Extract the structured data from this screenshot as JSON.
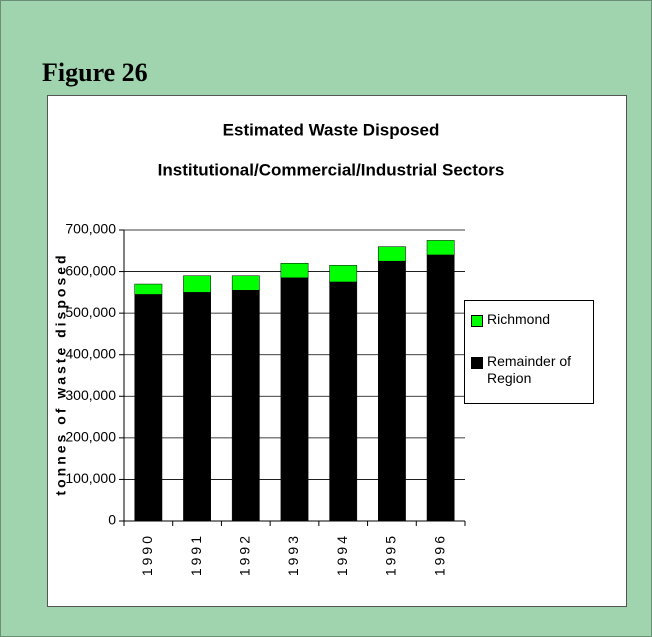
{
  "figure_label": "Figure 26",
  "chart_data": {
    "type": "stacked_bar",
    "title": [
      "Estimated Waste Disposed",
      "Institutional/Commercial/Industrial Sectors"
    ],
    "ylabel": "tonnes of waste disposed",
    "categories": [
      "1990",
      "1991",
      "1992",
      "1993",
      "1994",
      "1995",
      "1996"
    ],
    "series": [
      {
        "name": "Richmond",
        "color": "#00ff00",
        "values": [
          25000,
          40000,
          35000,
          35000,
          40000,
          35000,
          35000
        ]
      },
      {
        "name": "Remainder of Region",
        "color": "#000000",
        "values": [
          545000,
          550000,
          555000,
          585000,
          575000,
          625000,
          640000
        ]
      }
    ],
    "ylim": [
      0,
      700000
    ],
    "yticks": [
      0,
      {
        "value": 100000,
        "label": "100,000"
      },
      {
        "value": 200000,
        "label": "200,000"
      },
      {
        "value": 300000,
        "label": "300,000"
      },
      {
        "value": 400000,
        "label": "400,000"
      },
      {
        "value": 500000,
        "label": "500,000"
      },
      {
        "value": 600000,
        "label": "600,000"
      },
      {
        "value": 700000,
        "label": "700,000"
      }
    ],
    "grid": true,
    "legend": "right"
  }
}
